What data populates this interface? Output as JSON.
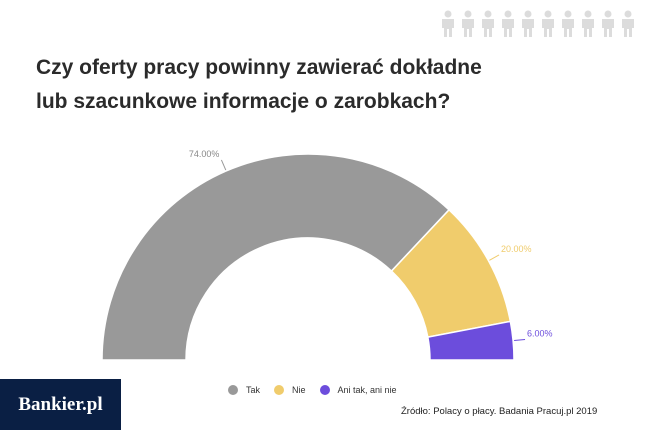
{
  "title_lines": [
    "Czy oferty pracy powinny zawierać dokładne",
    "lub szacunkowe informacje o zarobkach?"
  ],
  "source": "Źródło: Polacy o płacy. Badania Pracuj.pl 2019",
  "brand": "Bankier.pl",
  "decoration": {
    "icon": "person-icon",
    "count": 10,
    "color": "#dcdcdc"
  },
  "chart_data": {
    "type": "pie",
    "style": "semi-donut",
    "categories": [
      "Tak",
      "Nie",
      "Ani tak, ani nie"
    ],
    "values": [
      74.0,
      20.0,
      6.0
    ],
    "labels": [
      "74.00%",
      "20.00%",
      "6.00%"
    ],
    "colors": [
      "#999999",
      "#f0cc6c",
      "#6c4ddc"
    ],
    "legend_position": "bottom"
  }
}
